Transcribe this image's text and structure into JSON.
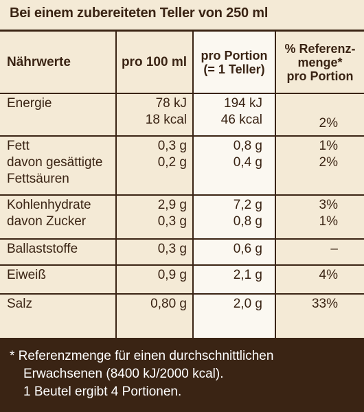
{
  "header": "Bei einem zubereiteten Teller von 250 ml",
  "columns": {
    "name": "Nährwerte",
    "per100": "pro 100 ml",
    "portion_line1": "pro Portion",
    "portion_line2": "(= 1 Teller)",
    "ref_line1": "% Referenz-",
    "ref_line2": "menge*",
    "ref_line3": "pro Portion"
  },
  "rows": {
    "energie": {
      "name": "Energie",
      "per100_kj": "78 kJ",
      "per100_kcal": "18 kcal",
      "portion_kj": "194 kJ",
      "portion_kcal": "46 kcal",
      "ref": "2%"
    },
    "fett": {
      "name1": "Fett",
      "name2": "davon gesättigte",
      "name3": "Fettsäuren",
      "per100_1": "0,3 g",
      "per100_2": "0,2 g",
      "portion_1": "0,8 g",
      "portion_2": "0,4 g",
      "ref_1": "1%",
      "ref_2": "2%"
    },
    "kh": {
      "name1": "Kohlenhydrate",
      "name2": "davon Zucker",
      "per100_1": "2,9 g",
      "per100_2": "0,3 g",
      "portion_1": "7,2 g",
      "portion_2": "0,8 g",
      "ref_1": "3%",
      "ref_2": "1%"
    },
    "ballast": {
      "name": "Ballaststoffe",
      "per100": "0,3 g",
      "portion": "0,6 g",
      "ref": "–"
    },
    "eiweiss": {
      "name": "Eiweiß",
      "per100": "0,9 g",
      "portion": "2,1 g",
      "ref": "4%"
    },
    "salz": {
      "name": "Salz",
      "per100": "0,80 g",
      "portion": "2,0 g",
      "ref": "33%"
    }
  },
  "footer": {
    "line1": "* Referenzmenge für einen durchschnittlichen",
    "line2": "Erwachsenen (8400 kJ/2000 kcal).",
    "line3": "1 Beutel ergibt 4 Portionen."
  }
}
